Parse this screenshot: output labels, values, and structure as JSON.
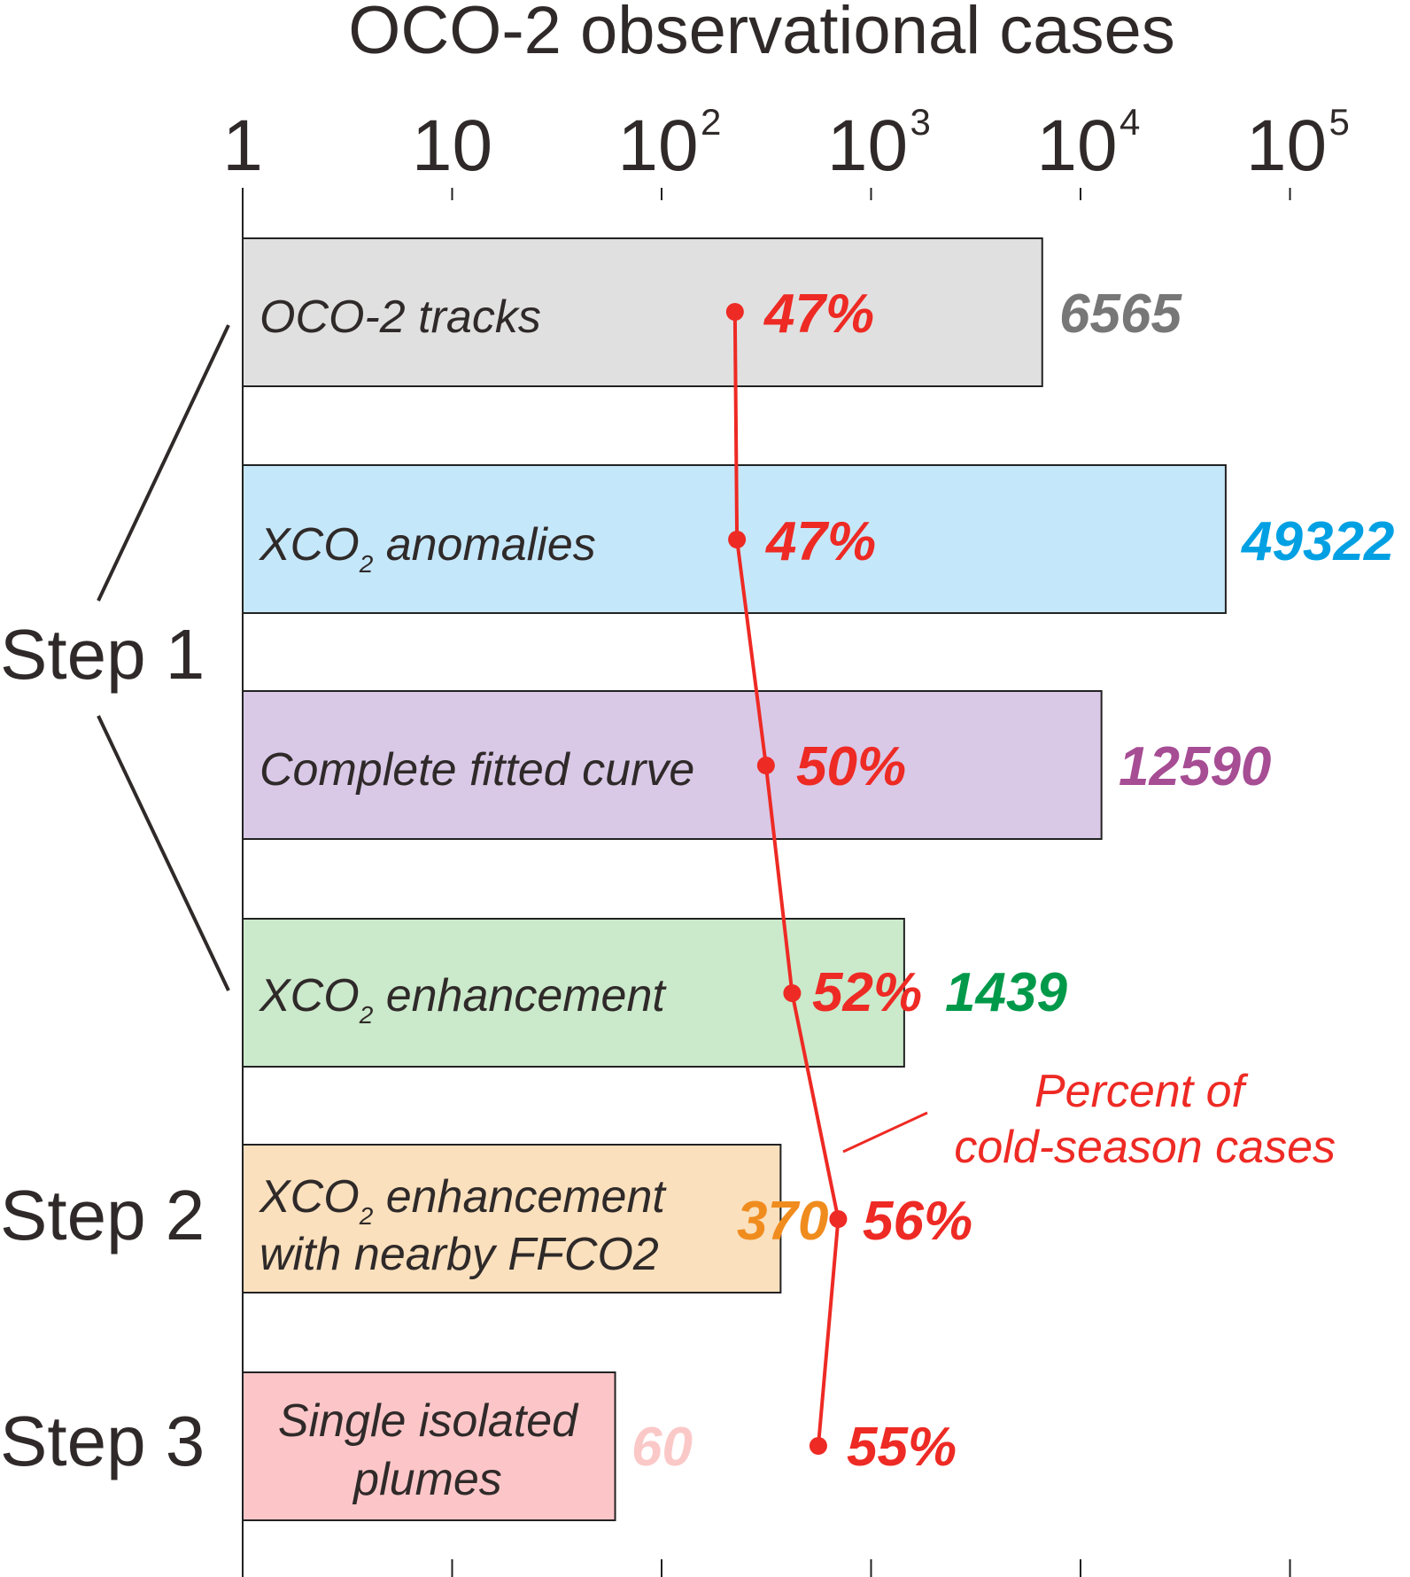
{
  "chart_data": {
    "type": "bar",
    "orientation": "horizontal",
    "title": "OCO-2 observational cases",
    "x_scale": "log",
    "xlim": [
      1,
      100000
    ],
    "x_ticks": [
      {
        "base": "1",
        "exp": ""
      },
      {
        "base": "10",
        "exp": ""
      },
      {
        "base": "10",
        "exp": "2"
      },
      {
        "base": "10",
        "exp": "3"
      },
      {
        "base": "10",
        "exp": "4"
      },
      {
        "base": "10",
        "exp": "5"
      }
    ],
    "bars": [
      {
        "lines": [
          {
            "main": "OCO-2 tracks",
            "sub": "",
            "rest": ""
          }
        ],
        "value": 6565,
        "value_label": "6565",
        "percent": 47,
        "percent_label": "47%",
        "fill": "#e0e0e0",
        "value_color": "#777777",
        "marker_x": 224
      },
      {
        "lines": [
          {
            "main": "XCO",
            "sub": "2",
            "rest": " anomalies"
          }
        ],
        "value": 49322,
        "value_label": "49322",
        "percent": 47,
        "percent_label": "47%",
        "fill": "#c5e7fa",
        "value_color": "#00a0e3",
        "marker_x": 229
      },
      {
        "lines": [
          {
            "main": "Complete fitted curve",
            "sub": "",
            "rest": ""
          }
        ],
        "value": 12590,
        "value_label": "12590",
        "percent": 50,
        "percent_label": "50%",
        "fill": "#d9c9e7",
        "value_color": "#a64d94",
        "marker_x": 315
      },
      {
        "lines": [
          {
            "main": "XCO",
            "sub": "2",
            "rest": " enhancement"
          }
        ],
        "value": 1439,
        "value_label": "1439",
        "percent": 52,
        "percent_label": "52%",
        "fill": "#cbe9cb",
        "value_color": "#00994a",
        "marker_x": 420
      },
      {
        "lines": [
          {
            "main": "XCO",
            "sub": "2",
            "rest": " enhancement"
          },
          {
            "main": "with nearby FFCO2",
            "sub": "",
            "rest": ""
          }
        ],
        "value": 370,
        "value_label": "370",
        "percent": 56,
        "percent_label": "56%",
        "fill": "#fae0bd",
        "value_color": "#f08c1e",
        "marker_x": 697
      },
      {
        "lines": [
          {
            "main": "Single isolated",
            "sub": "",
            "rest": ""
          },
          {
            "main": "plumes",
            "sub": "",
            "rest": ""
          }
        ],
        "value": 60,
        "value_label": "60",
        "percent": 55,
        "percent_label": "55%",
        "fill": "#fcc6c8",
        "value_color": "#fbc8c8",
        "marker_x": 560
      }
    ],
    "steps": [
      "Step 1",
      "Step 2",
      "Step 3"
    ],
    "annotation": [
      "Percent of",
      "cold-season cases"
    ],
    "line_color": "#ee2a24"
  }
}
